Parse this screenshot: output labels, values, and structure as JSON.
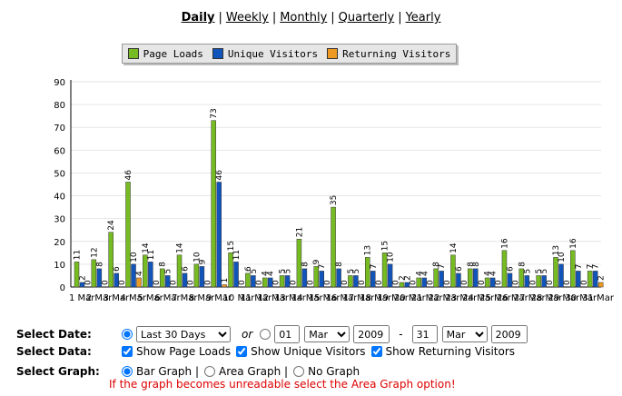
{
  "nav": {
    "daily": "Daily",
    "weekly": "Weekly",
    "monthly": "Monthly",
    "quarterly": "Quarterly",
    "yearly": "Yearly",
    "separator": "|"
  },
  "legend": {
    "items": [
      {
        "label": "Page Loads",
        "color": "#77bb22"
      },
      {
        "label": "Unique Visitors",
        "color": "#1155bb"
      },
      {
        "label": "Returning Visitors",
        "color": "#ee9922"
      }
    ]
  },
  "chart_data": {
    "type": "bar",
    "ylim": [
      0,
      90
    ],
    "yticks": [
      0,
      10,
      20,
      30,
      40,
      50,
      60,
      70,
      80,
      90
    ],
    "grid": true,
    "categories": [
      "1 Mar",
      "2 Mar",
      "3 Mar",
      "4 Mar",
      "5 Mar",
      "6 Mar",
      "7 Mar",
      "8 Mar",
      "9 Mar",
      "10 Mar",
      "11 Mar",
      "12 Mar",
      "13 Mar",
      "14 Mar",
      "15 Mar",
      "16 Mar",
      "17 Mar",
      "18 Mar",
      "19 Mar",
      "20 Mar",
      "21 Mar",
      "22 Mar",
      "23 Mar",
      "24 Mar",
      "25 Mar",
      "26 Mar",
      "27 Mar",
      "28 Mar",
      "29 Mar",
      "30 Mar",
      "31 Mar"
    ],
    "series": [
      {
        "name": "Page Loads",
        "color": "#77bb22",
        "values": [
          11,
          12,
          24,
          46,
          14,
          8,
          14,
          10,
          73,
          15,
          6,
          4,
          5,
          21,
          9,
          35,
          5,
          13,
          15,
          2,
          4,
          8,
          14,
          8,
          4,
          16,
          8,
          5,
          13,
          16,
          7
        ]
      },
      {
        "name": "Unique Visitors",
        "color": "#1155bb",
        "values": [
          2,
          8,
          6,
          10,
          11,
          5,
          6,
          9,
          46,
          11,
          5,
          4,
          5,
          8,
          7,
          8,
          5,
          7,
          10,
          2,
          4,
          7,
          6,
          8,
          4,
          6,
          5,
          5,
          10,
          7,
          7
        ]
      },
      {
        "name": "Returning Visitors",
        "color": "#ee9922",
        "values": [
          0,
          0,
          0,
          4,
          0,
          0,
          0,
          0,
          1,
          0,
          0,
          0,
          0,
          0,
          0,
          0,
          0,
          0,
          0,
          0,
          0,
          0,
          0,
          0,
          0,
          0,
          0,
          0,
          0,
          0,
          2
        ]
      }
    ]
  },
  "controls": {
    "select_date_label": "Select Date:",
    "range_option": "Last 30 Days",
    "or_label": "or",
    "from_day": "01",
    "from_month": "Mar",
    "from_year": "2009",
    "dash": "-",
    "to_day": "31",
    "to_month": "Mar",
    "to_year": "2009",
    "select_data_label": "Select Data:",
    "show_page_loads": "Show Page Loads",
    "show_unique": "Show Unique Visitors",
    "show_returning": "Show Returning Visitors",
    "select_graph_label": "Select Graph:",
    "bar_graph": "Bar Graph |",
    "area_graph": "Area Graph |",
    "no_graph": "No Graph",
    "warning": "If the graph becomes unreadable select the Area Graph option!"
  }
}
